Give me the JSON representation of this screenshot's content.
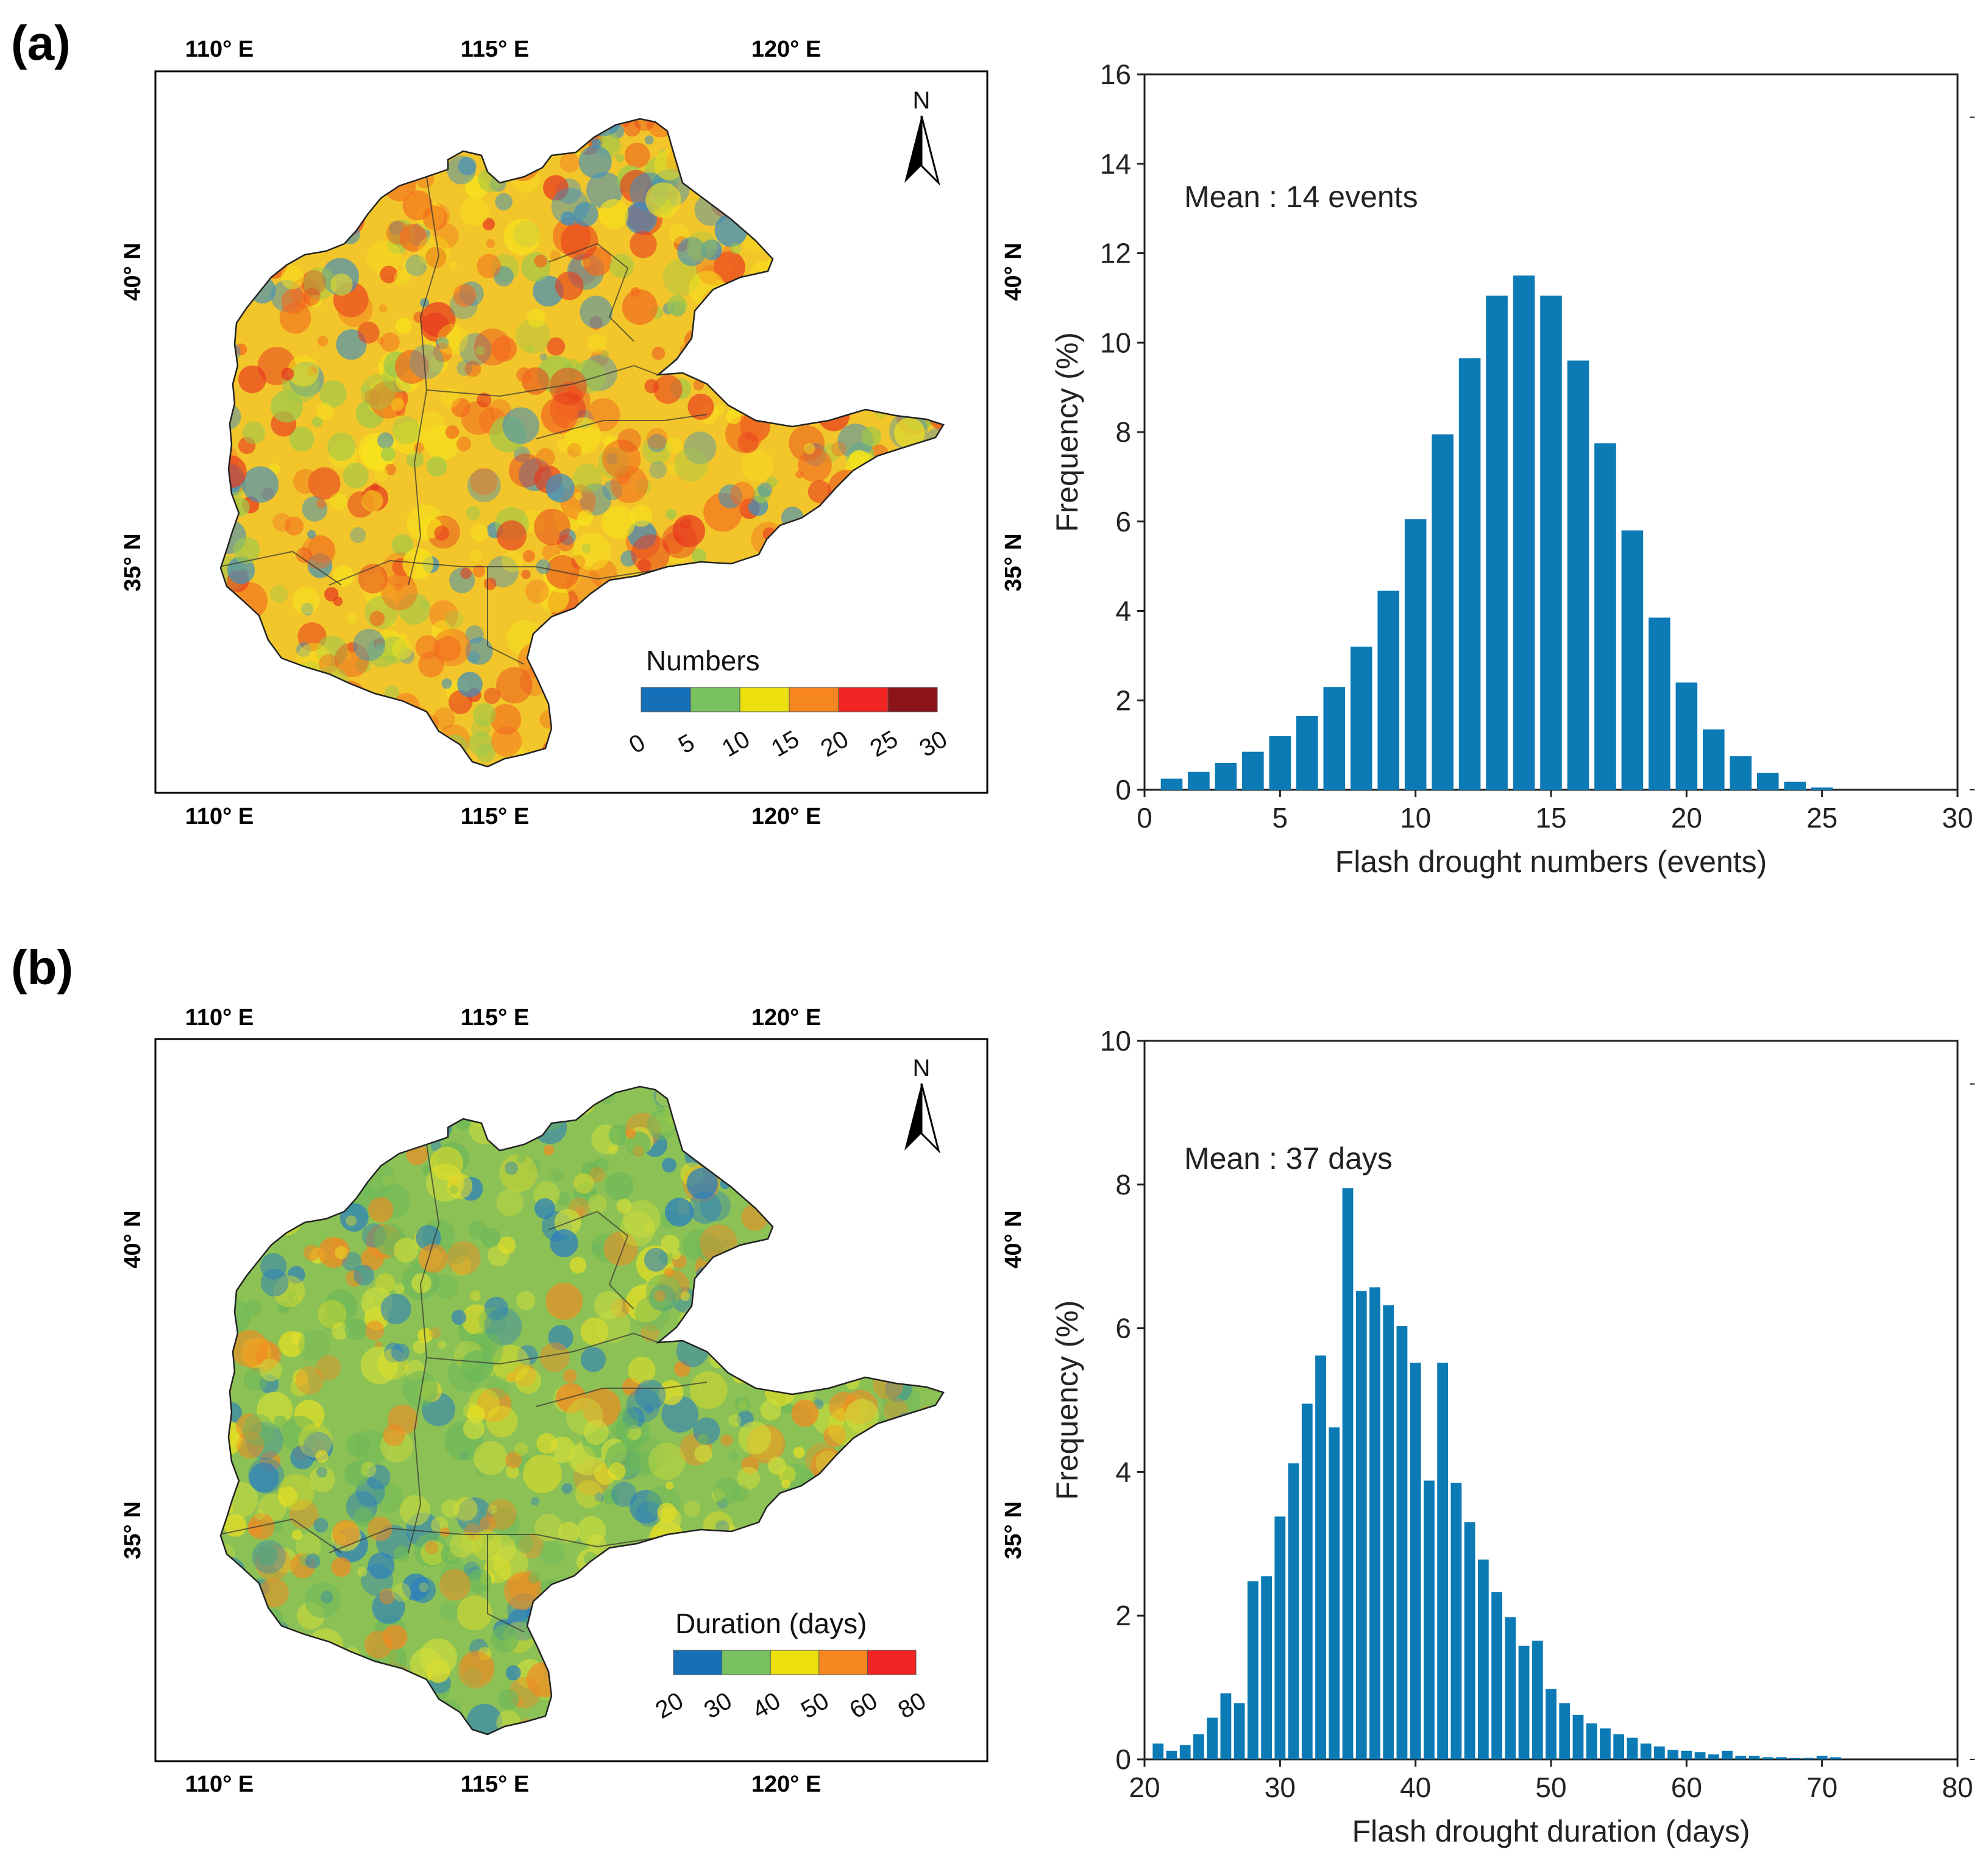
{
  "panels": [
    {
      "id": "a",
      "label": "(a)",
      "map": {
        "lon_ticks": [
          "110° E",
          "115° E",
          "120° E"
        ],
        "lat_ticks": [
          "40° N",
          "35° N"
        ],
        "north_label": "N",
        "legend": {
          "title": "Numbers",
          "ticks": [
            "0",
            "5",
            "10",
            "15",
            "20",
            "25",
            "30"
          ],
          "colors": [
            "#1670b7",
            "#79c160",
            "#ecdf0e",
            "#f6861f",
            "#f32424",
            "#8c1419"
          ]
        },
        "base_color": "#f2c62a",
        "patch_colors": [
          "#f26a1f",
          "#e83a1f",
          "#9dc84a",
          "#3d8fc0",
          "#f7e21c"
        ]
      },
      "chart_data": {
        "type": "bar",
        "title": "",
        "annotation": "Mean : 14 events",
        "xlabel": "Flash drought numbers (events)",
        "ylabel": "Frequency (%)",
        "xlim": [
          0,
          30
        ],
        "ylim": [
          0,
          16
        ],
        "xticks": [
          "0",
          "5",
          "10",
          "15",
          "20",
          "25",
          "30"
        ],
        "yticks": [
          "0",
          "2",
          "4",
          "6",
          "8",
          "10",
          "12",
          "14",
          "16"
        ],
        "bar_width": 0.8,
        "bar_color": "#0b7ab5",
        "x": [
          1,
          2,
          3,
          4,
          5,
          6,
          7,
          8,
          9,
          10,
          11,
          12,
          13,
          14,
          15,
          16,
          17,
          18,
          19,
          20,
          21,
          22,
          23,
          24,
          25
        ],
        "values": [
          0.25,
          0.4,
          0.6,
          0.85,
          1.2,
          1.65,
          2.3,
          3.2,
          4.45,
          6.05,
          7.95,
          9.65,
          11.05,
          11.5,
          11.05,
          9.6,
          7.75,
          5.8,
          3.85,
          2.4,
          1.35,
          0.75,
          0.38,
          0.18,
          0.05
        ]
      }
    },
    {
      "id": "b",
      "label": "(b)",
      "map": {
        "lon_ticks": [
          "110° E",
          "115° E",
          "120° E"
        ],
        "lat_ticks": [
          "40° N",
          "35° N"
        ],
        "north_label": "N",
        "legend": {
          "title": "Duration (days)",
          "ticks": [
            "20",
            "30",
            "40",
            "50",
            "60",
            "80"
          ],
          "colors": [
            "#1670b7",
            "#79c160",
            "#ecdf0e",
            "#f6861f",
            "#f32424"
          ]
        },
        "base_color": "#8cc155",
        "patch_colors": [
          "#e9df22",
          "#2a7fbf",
          "#f08a22",
          "#6cb85a",
          "#cfdc3a"
        ]
      },
      "chart_data": {
        "type": "bar",
        "title": "",
        "annotation": "Mean : 37 days",
        "xlabel": "Flash drought duration (days)",
        "ylabel": "Frequency (%)",
        "xlim": [
          20,
          80
        ],
        "ylim": [
          0,
          10
        ],
        "xticks": [
          "20",
          "30",
          "40",
          "50",
          "60",
          "70",
          "80"
        ],
        "yticks": [
          "0",
          "2",
          "4",
          "6",
          "8",
          "10"
        ],
        "bar_width": 0.8,
        "bar_color": "#0b7ab5",
        "x": [
          21,
          22,
          23,
          24,
          25,
          26,
          27,
          28,
          29,
          30,
          31,
          32,
          33,
          34,
          35,
          36,
          37,
          38,
          39,
          40,
          41,
          42,
          43,
          44,
          45,
          46,
          47,
          48,
          49,
          50,
          51,
          52,
          53,
          54,
          55,
          56,
          57,
          58,
          59,
          60,
          61,
          62,
          63,
          64,
          65,
          66,
          67,
          68,
          69,
          70,
          71
        ],
        "values": [
          0.22,
          0.12,
          0.2,
          0.35,
          0.58,
          0.92,
          0.78,
          2.48,
          2.55,
          3.38,
          4.12,
          4.95,
          5.62,
          4.62,
          7.95,
          6.52,
          6.57,
          6.32,
          6.03,
          5.52,
          3.88,
          5.52,
          3.85,
          3.3,
          2.78,
          2.33,
          1.98,
          1.58,
          1.65,
          0.98,
          0.78,
          0.62,
          0.5,
          0.43,
          0.35,
          0.3,
          0.22,
          0.18,
          0.13,
          0.12,
          0.1,
          0.07,
          0.12,
          0.05,
          0.05,
          0.03,
          0.03,
          0.02,
          0.02,
          0.05,
          0.03
        ]
      }
    }
  ]
}
